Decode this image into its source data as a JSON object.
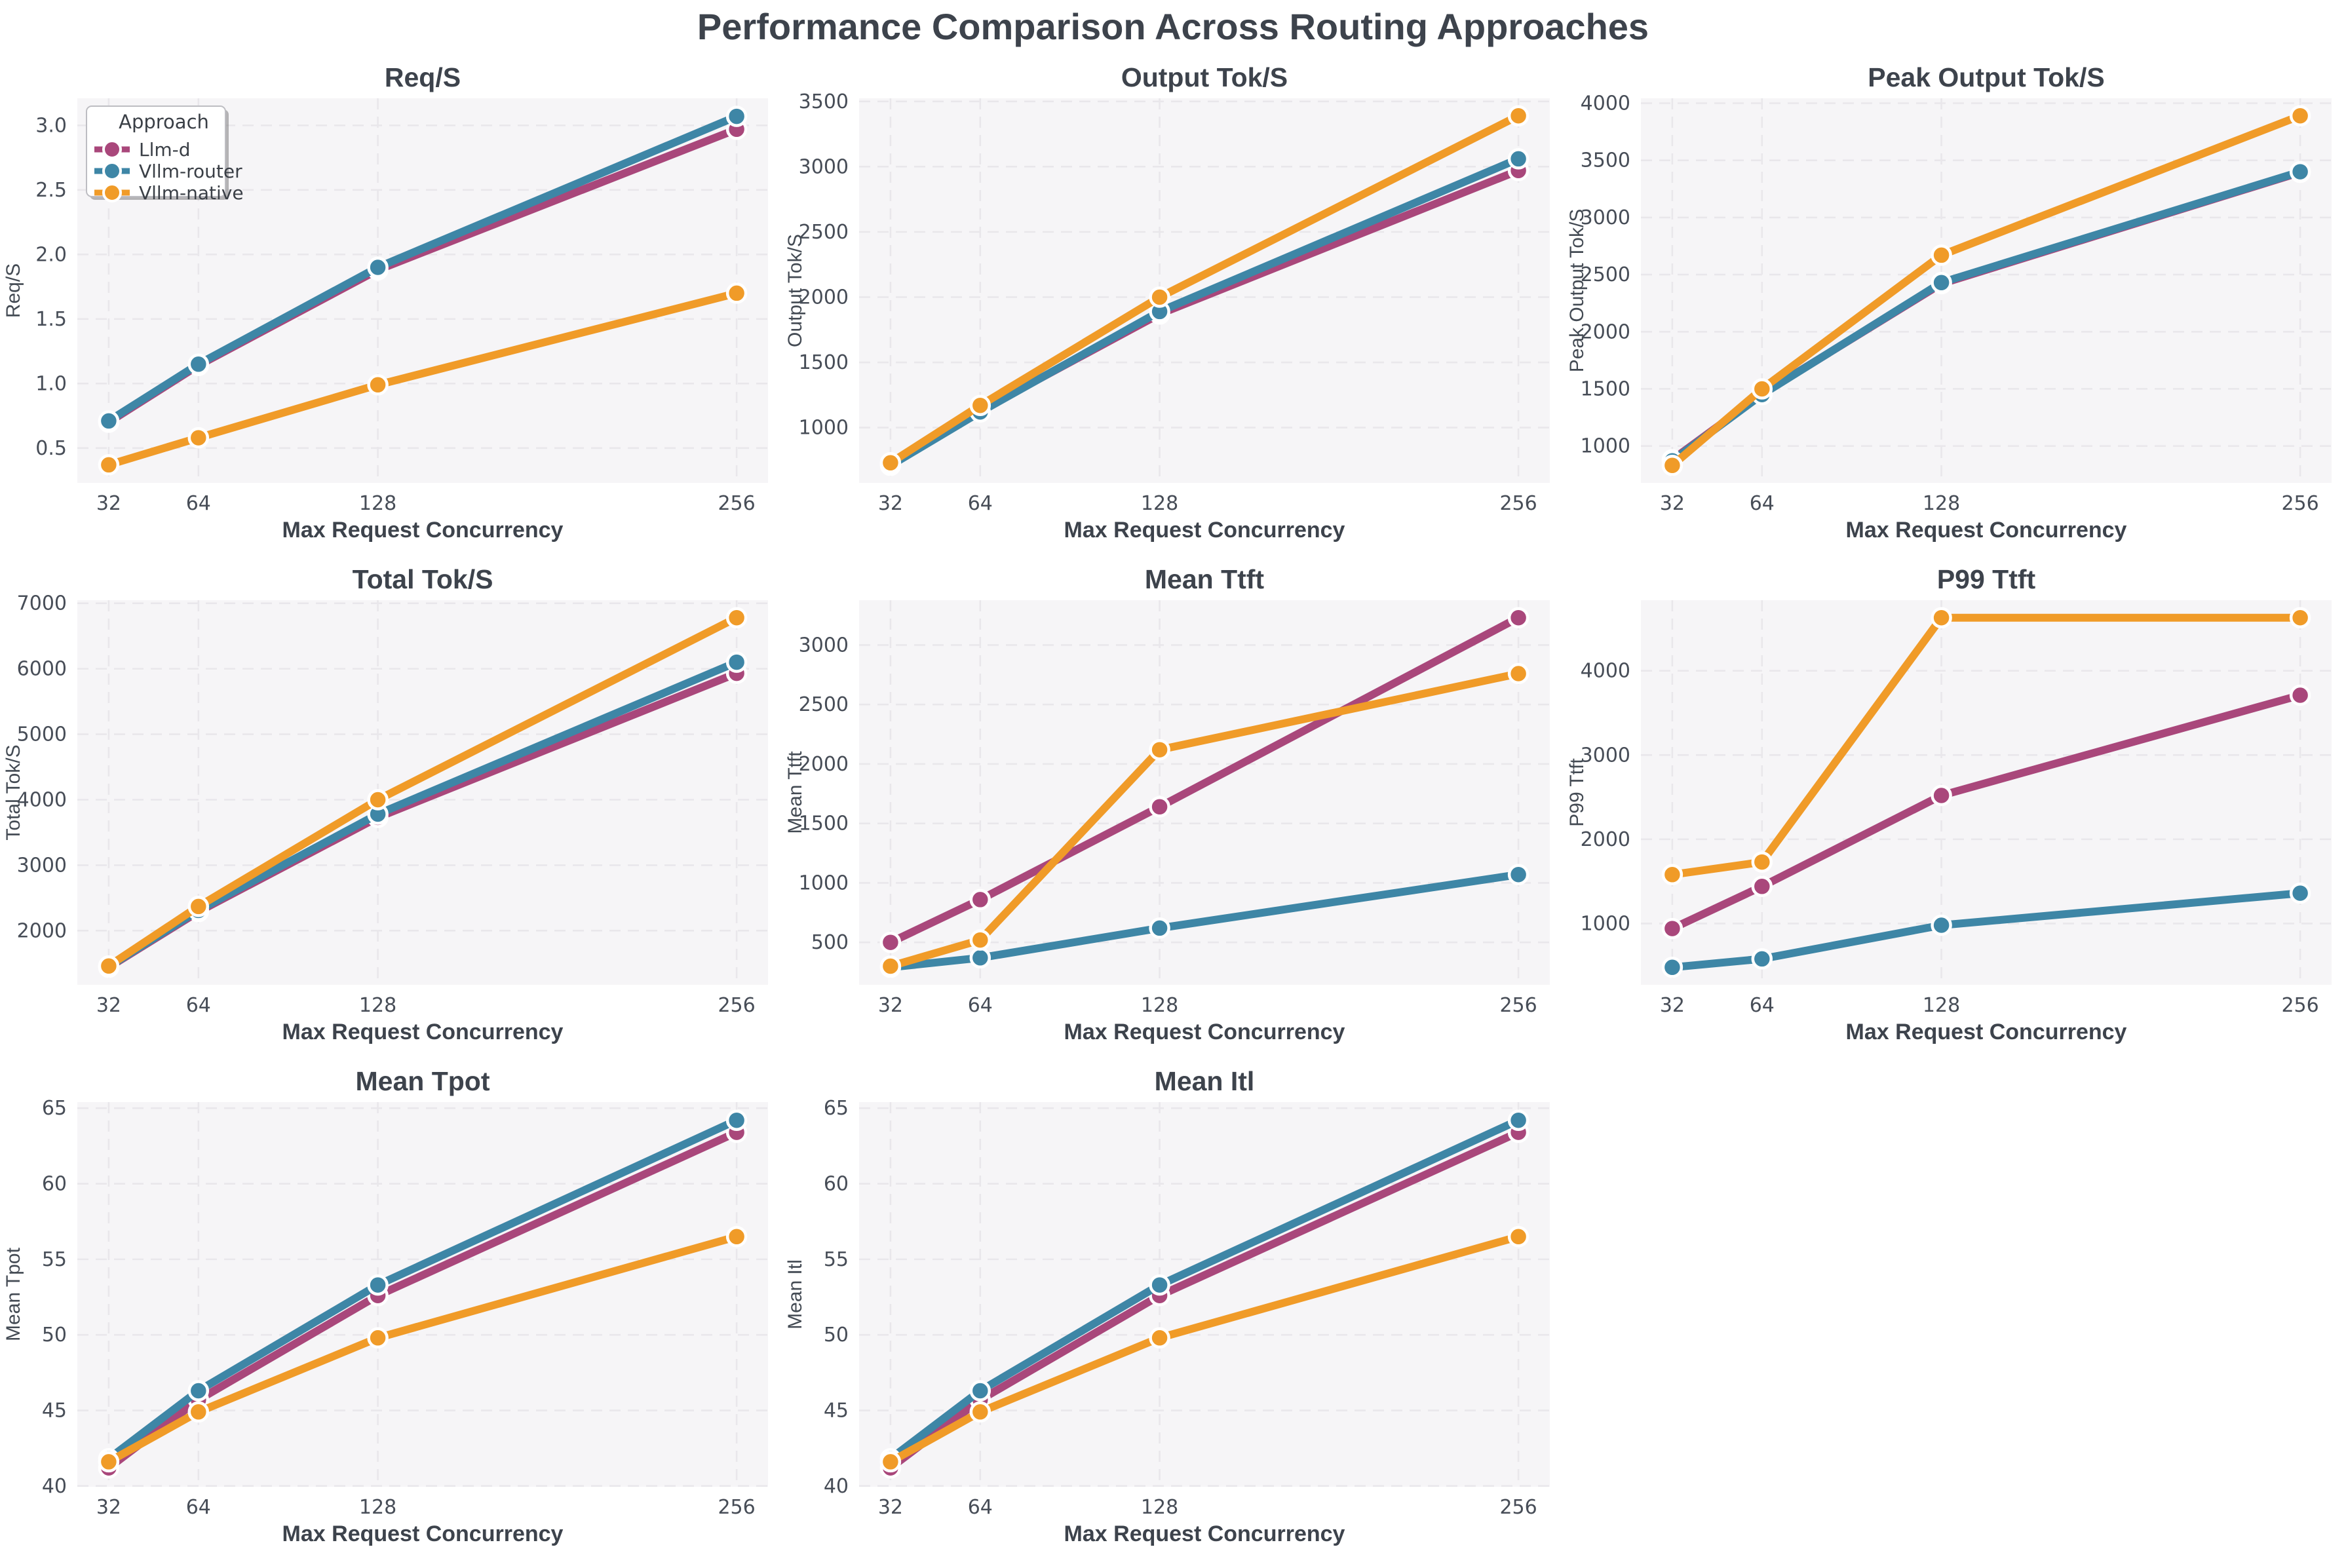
{
  "title": "Performance Comparison Across Routing Approaches",
  "xlabel": "Max Request Concurrency",
  "legend": {
    "title": "Approach",
    "items": [
      {
        "label": "Llm-d",
        "color": "#a9477b"
      },
      {
        "label": "Vllm-router",
        "color": "#3e86a6"
      },
      {
        "label": "Vllm-native",
        "color": "#f09b28"
      }
    ]
  },
  "colors": {
    "llm_d": "#a9477b",
    "vllm_router": "#3e86a6",
    "vllm_native": "#f09b28",
    "plot_bg": "#f6f5f7",
    "gridline": "#e9e7eb",
    "title_text": "#3d434c",
    "tick_text": "#474d57",
    "marker_edge": "#ffffff"
  },
  "chart_data": {
    "type": "line",
    "x": [
      32,
      64,
      128,
      256
    ],
    "x_tick_labels": [
      "32",
      "64",
      "128",
      "256"
    ],
    "xlabel": "Max Request Concurrency",
    "legend_title": "Approach",
    "legend_position": "upper-left of first subplot",
    "grid": "dashed, both axes",
    "series_names": [
      "Llm-d",
      "Vllm-router",
      "Vllm-native"
    ],
    "subplots": [
      {
        "id": "req-s",
        "title": "Req/S",
        "ylabel": "Req/S",
        "yticks": [
          0.5,
          1.0,
          1.5,
          2.0,
          2.5,
          3.0
        ],
        "ytick_labels": [
          "0.5",
          "1.0",
          "1.5",
          "2.0",
          "2.5",
          "3.0"
        ],
        "ylim": [
          0.23,
          3.21
        ],
        "legend": true,
        "series": [
          {
            "name": "Llm-d",
            "values": [
              0.7,
              1.14,
              1.88,
              2.97
            ]
          },
          {
            "name": "Vllm-router",
            "values": [
              0.71,
              1.15,
              1.9,
              3.07
            ]
          },
          {
            "name": "Vllm-native",
            "values": [
              0.37,
              0.58,
              0.99,
              1.7
            ]
          }
        ]
      },
      {
        "id": "output-tok-s",
        "title": "Output Tok/S",
        "ylabel": "Output Tok/S",
        "yticks": [
          1000,
          1500,
          2000,
          2500,
          3000,
          3500
        ],
        "ytick_labels": [
          "1000",
          "1500",
          "2000",
          "2500",
          "3000",
          "3500"
        ],
        "ylim": [
          576,
          3524
        ],
        "legend": false,
        "series": [
          {
            "name": "Llm-d",
            "values": [
              720,
              1130,
              1870,
              2970
            ]
          },
          {
            "name": "Vllm-router",
            "values": [
              710,
              1120,
              1890,
              3060
            ]
          },
          {
            "name": "Vllm-native",
            "values": [
              730,
              1170,
              2000,
              3390
            ]
          }
        ]
      },
      {
        "id": "peak-output-tok-s",
        "title": "Peak Output Tok/S",
        "ylabel": "Peak Output Tok/S",
        "yticks": [
          1000,
          1500,
          2000,
          2500,
          3000,
          3500,
          4000
        ],
        "ytick_labels": [
          "1000",
          "1500",
          "2000",
          "2500",
          "3000",
          "3500",
          "4000"
        ],
        "ylim": [
          677,
          4043
        ],
        "legend": false,
        "series": [
          {
            "name": "Llm-d",
            "values": [
              880,
              1455,
              2420,
              3395
            ]
          },
          {
            "name": "Vllm-router",
            "values": [
              870,
              1450,
              2430,
              3400
            ]
          },
          {
            "name": "Vllm-native",
            "values": [
              830,
              1500,
              2670,
              3890
            ]
          }
        ]
      },
      {
        "id": "total-tok-s",
        "title": "Total Tok/S",
        "ylabel": "Total Tok/S",
        "yticks": [
          2000,
          3000,
          4000,
          5000,
          6000,
          7000
        ],
        "ytick_labels": [
          "2000",
          "3000",
          "4000",
          "5000",
          "6000",
          "7000"
        ],
        "ylim": [
          1173,
          7047
        ],
        "legend": false,
        "series": [
          {
            "name": "Llm-d",
            "values": [
              1440,
              2290,
              3730,
              5930
            ]
          },
          {
            "name": "Vllm-router",
            "values": [
              1450,
              2310,
              3780,
              6100
            ]
          },
          {
            "name": "Vllm-native",
            "values": [
              1460,
              2370,
              4000,
              6780
            ]
          }
        ]
      },
      {
        "id": "mean-ttft",
        "title": "Mean Ttft",
        "ylabel": "Mean Ttft",
        "yticks": [
          500,
          1000,
          1500,
          2000,
          2500,
          3000
        ],
        "ytick_labels": [
          "500",
          "1000",
          "1500",
          "2000",
          "2500",
          "3000"
        ],
        "ylim": [
          143,
          3377
        ],
        "legend": false,
        "series": [
          {
            "name": "Llm-d",
            "values": [
              500,
              860,
              1640,
              3230
            ]
          },
          {
            "name": "Vllm-router",
            "values": [
              290,
              370,
              620,
              1070
            ]
          },
          {
            "name": "Vllm-native",
            "values": [
              300,
              520,
              2120,
              2760
            ]
          }
        ]
      },
      {
        "id": "p99-ttft",
        "title": "P99 Ttft",
        "ylabel": "P99 Ttft",
        "yticks": [
          1000,
          2000,
          3000,
          4000
        ],
        "ytick_labels": [
          "1000",
          "2000",
          "3000",
          "4000"
        ],
        "ylim": [
          272,
          4838
        ],
        "legend": false,
        "series": [
          {
            "name": "Llm-d",
            "values": [
              940,
              1440,
              2520,
              3710
            ]
          },
          {
            "name": "Vllm-router",
            "values": [
              480,
              580,
              980,
              1360
            ]
          },
          {
            "name": "Vllm-native",
            "values": [
              1580,
              1730,
              4630,
              4630
            ]
          }
        ]
      },
      {
        "id": "mean-tpot",
        "title": "Mean Tpot",
        "ylabel": "Mean Tpot",
        "yticks": [
          40,
          45,
          50,
          55,
          60,
          65
        ],
        "ytick_labels": [
          "40",
          "45",
          "50",
          "55",
          "60",
          "65"
        ],
        "ylim": [
          39.95,
          65.4
        ],
        "legend": false,
        "series": [
          {
            "name": "Llm-d",
            "values": [
              41.2,
              45.7,
              52.6,
              63.4
            ]
          },
          {
            "name": "Vllm-router",
            "values": [
              41.8,
              46.3,
              53.3,
              64.2
            ]
          },
          {
            "name": "Vllm-native",
            "values": [
              41.6,
              44.9,
              49.8,
              56.5
            ]
          }
        ]
      },
      {
        "id": "mean-itl",
        "title": "Mean Itl",
        "ylabel": "Mean Itl",
        "yticks": [
          40,
          45,
          50,
          55,
          60,
          65
        ],
        "ytick_labels": [
          "40",
          "45",
          "50",
          "55",
          "60",
          "65"
        ],
        "ylim": [
          39.95,
          65.4
        ],
        "legend": false,
        "series": [
          {
            "name": "Llm-d",
            "values": [
              41.2,
              45.7,
              52.6,
              63.4
            ]
          },
          {
            "name": "Vllm-router",
            "values": [
              41.8,
              46.3,
              53.3,
              64.2
            ]
          },
          {
            "name": "Vllm-native",
            "values": [
              41.6,
              44.9,
              49.8,
              56.5
            ]
          }
        ]
      }
    ]
  }
}
